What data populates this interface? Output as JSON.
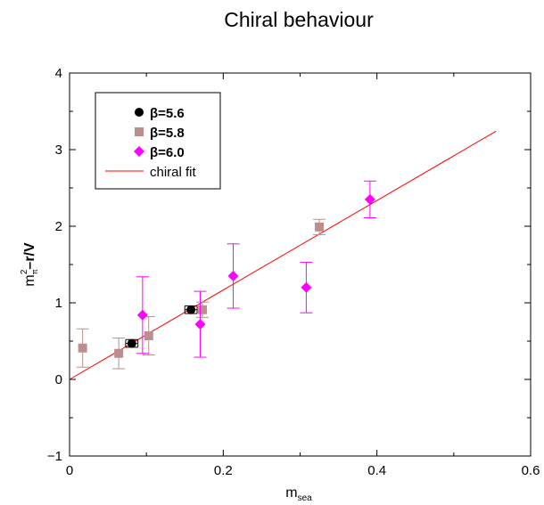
{
  "chart_data": {
    "type": "scatter",
    "title": "Chiral behaviour",
    "xlabel": {
      "base": "m",
      "sub": "sea"
    },
    "ylabel": {
      "base": "m",
      "sub": "π",
      "sup": "2",
      "rest": "–r/V"
    },
    "xlim": [
      0,
      0.6
    ],
    "ylim": [
      -1,
      4
    ],
    "x_ticks": [
      0,
      0.2,
      0.4,
      0.6
    ],
    "x_tick_labels": [
      "0",
      "0.2",
      "0.4",
      "0.6"
    ],
    "y_ticks": [
      -1,
      0,
      1,
      2,
      3,
      4
    ],
    "y_tick_labels": [
      "−1",
      "0",
      "1",
      "2",
      "3",
      "4"
    ],
    "grid": false,
    "legend_position": "top-left",
    "series": [
      {
        "name": "β=5.6",
        "marker": "circle",
        "color": "#000000",
        "points": [
          {
            "x": 0.081,
            "y": 0.47,
            "yerr": 0.05,
            "xerr": 0.008
          },
          {
            "x": 0.158,
            "y": 0.91,
            "yerr": 0.05,
            "xerr": 0.008
          }
        ]
      },
      {
        "name": "β=5.8",
        "marker": "square",
        "color": "#bc8f8f",
        "points": [
          {
            "x": 0.017,
            "y": 0.41,
            "yerr": 0.25
          },
          {
            "x": 0.064,
            "y": 0.34,
            "yerr": 0.2
          },
          {
            "x": 0.103,
            "y": 0.57,
            "yerr": 0.25
          },
          {
            "x": 0.173,
            "y": 0.91,
            "yerr": 0.1
          },
          {
            "x": 0.325,
            "y": 1.99,
            "yerr": 0.1
          }
        ]
      },
      {
        "name": "β=6.0",
        "marker": "diamond",
        "color": "#ff00ff",
        "points": [
          {
            "x": 0.095,
            "y": 0.84,
            "yerr": 0.5
          },
          {
            "x": 0.17,
            "y": 0.72,
            "yerr": 0.43
          },
          {
            "x": 0.213,
            "y": 1.35,
            "yerr": 0.42
          },
          {
            "x": 0.308,
            "y": 1.2,
            "yerr": 0.33
          },
          {
            "x": 0.391,
            "y": 2.35,
            "yerr": 0.24
          }
        ]
      }
    ],
    "fit": {
      "name": "chiral fit",
      "color": "#ff0000",
      "x": [
        0.0,
        0.555
      ],
      "y": [
        0.0,
        3.24
      ]
    }
  }
}
